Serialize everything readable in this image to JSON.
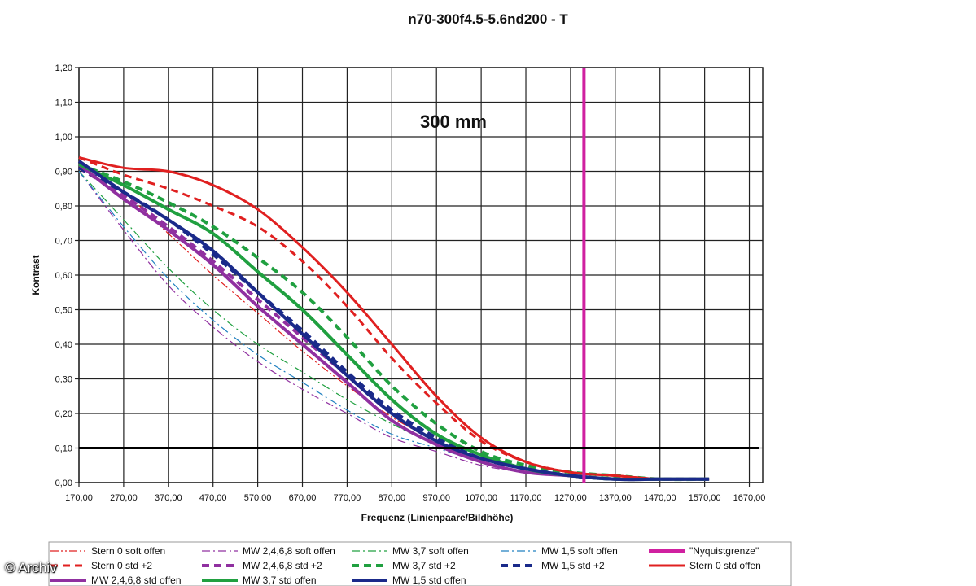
{
  "chart_data": {
    "type": "line",
    "title": "n70-300f4.5-5.6nd200 - T",
    "annotation": "300 mm",
    "xlabel": "Frequenz (Linienpaare/Bildhöhe)",
    "ylabel": "Kontrast",
    "xlim": [
      170,
      1700
    ],
    "ylim": [
      0,
      1.2
    ],
    "x_ticks": [
      "170,00",
      "270,00",
      "370,00",
      "470,00",
      "570,00",
      "670,00",
      "770,00",
      "870,00",
      "970,00",
      "1070,00",
      "1170,00",
      "1270,00",
      "1370,00",
      "1470,00",
      "1570,00",
      "1670,00"
    ],
    "y_ticks": [
      "0,00",
      "0,10",
      "0,20",
      "0,30",
      "0,40",
      "0,50",
      "0,60",
      "0,70",
      "0,80",
      "0,90",
      "1,00",
      "1,10",
      "1,20"
    ],
    "grid": true,
    "legend_position": "bottom",
    "reference_lines": [
      {
        "orientation": "vertical",
        "x": 1300,
        "color": "#d020a0"
      },
      {
        "orientation": "horizontal",
        "y": 0.1,
        "color": "#000000"
      }
    ],
    "series": [
      {
        "name": "Stern 0 soft offen",
        "color": "#e02020",
        "style": "dashdotdot",
        "width": 1.2,
        "points": [
          [
            170,
            0.93
          ],
          [
            270,
            0.84
          ],
          [
            370,
            0.72
          ],
          [
            470,
            0.6
          ],
          [
            570,
            0.49
          ],
          [
            670,
            0.38
          ],
          [
            770,
            0.28
          ],
          [
            870,
            0.19
          ],
          [
            970,
            0.12
          ],
          [
            1070,
            0.07
          ],
          [
            1170,
            0.04
          ],
          [
            1270,
            0.02
          ],
          [
            1370,
            0.01
          ],
          [
            1470,
            0.01
          ],
          [
            1580,
            0.01
          ]
        ]
      },
      {
        "name": "MW 2,4,6,8 soft offen",
        "color": "#9030a0",
        "style": "dashdot",
        "width": 1.2,
        "points": [
          [
            170,
            0.9
          ],
          [
            270,
            0.73
          ],
          [
            370,
            0.57
          ],
          [
            470,
            0.45
          ],
          [
            570,
            0.35
          ],
          [
            670,
            0.27
          ],
          [
            770,
            0.2
          ],
          [
            870,
            0.13
          ],
          [
            970,
            0.09
          ],
          [
            1070,
            0.05
          ],
          [
            1170,
            0.03
          ],
          [
            1270,
            0.02
          ],
          [
            1370,
            0.01
          ],
          [
            1470,
            0.01
          ],
          [
            1580,
            0.01
          ]
        ]
      },
      {
        "name": "MW 3,7 soft offen",
        "color": "#20a040",
        "style": "dashdot",
        "width": 1.2,
        "points": [
          [
            170,
            0.9
          ],
          [
            270,
            0.76
          ],
          [
            370,
            0.62
          ],
          [
            470,
            0.5
          ],
          [
            570,
            0.4
          ],
          [
            670,
            0.32
          ],
          [
            770,
            0.24
          ],
          [
            870,
            0.17
          ],
          [
            970,
            0.11
          ],
          [
            1070,
            0.07
          ],
          [
            1170,
            0.04
          ],
          [
            1270,
            0.02
          ],
          [
            1370,
            0.01
          ],
          [
            1470,
            0.01
          ],
          [
            1580,
            0.01
          ]
        ]
      },
      {
        "name": "MW 1,5 soft offen",
        "color": "#2080c0",
        "style": "dashdot",
        "width": 1.2,
        "points": [
          [
            170,
            0.9
          ],
          [
            270,
            0.74
          ],
          [
            370,
            0.59
          ],
          [
            470,
            0.47
          ],
          [
            570,
            0.37
          ],
          [
            670,
            0.29
          ],
          [
            770,
            0.21
          ],
          [
            870,
            0.14
          ],
          [
            970,
            0.1
          ],
          [
            1070,
            0.06
          ],
          [
            1170,
            0.03
          ],
          [
            1270,
            0.02
          ],
          [
            1370,
            0.01
          ],
          [
            1470,
            0.01
          ],
          [
            1580,
            0.01
          ]
        ]
      },
      {
        "name": "\"Nyquistgrenze\"",
        "color": "#d020a0",
        "style": "solid",
        "width": 4,
        "points": []
      },
      {
        "name": "Stern 0 std +2",
        "color": "#e02020",
        "style": "dash",
        "width": 3,
        "points": [
          [
            170,
            0.94
          ],
          [
            270,
            0.89
          ],
          [
            370,
            0.85
          ],
          [
            470,
            0.8
          ],
          [
            570,
            0.74
          ],
          [
            670,
            0.64
          ],
          [
            770,
            0.51
          ],
          [
            870,
            0.36
          ],
          [
            970,
            0.23
          ],
          [
            1070,
            0.12
          ],
          [
            1170,
            0.06
          ],
          [
            1270,
            0.03
          ],
          [
            1370,
            0.02
          ],
          [
            1470,
            0.01
          ],
          [
            1580,
            0.01
          ]
        ]
      },
      {
        "name": "MW 2,4,6,8 std +2",
        "color": "#9030a0",
        "style": "dash",
        "width": 4,
        "points": [
          [
            170,
            0.91
          ],
          [
            270,
            0.83
          ],
          [
            370,
            0.74
          ],
          [
            470,
            0.64
          ],
          [
            570,
            0.53
          ],
          [
            670,
            0.42
          ],
          [
            770,
            0.31
          ],
          [
            870,
            0.2
          ],
          [
            970,
            0.12
          ],
          [
            1070,
            0.07
          ],
          [
            1170,
            0.04
          ],
          [
            1270,
            0.02
          ],
          [
            1370,
            0.01
          ],
          [
            1470,
            0.01
          ],
          [
            1580,
            0.01
          ]
        ]
      },
      {
        "name": "MW 3,7 std +2",
        "color": "#20a040",
        "style": "dash",
        "width": 4,
        "points": [
          [
            170,
            0.92
          ],
          [
            270,
            0.87
          ],
          [
            370,
            0.81
          ],
          [
            470,
            0.74
          ],
          [
            570,
            0.65
          ],
          [
            670,
            0.55
          ],
          [
            770,
            0.42
          ],
          [
            870,
            0.28
          ],
          [
            970,
            0.17
          ],
          [
            1070,
            0.09
          ],
          [
            1170,
            0.05
          ],
          [
            1270,
            0.03
          ],
          [
            1370,
            0.02
          ],
          [
            1470,
            0.01
          ],
          [
            1580,
            0.01
          ]
        ]
      },
      {
        "name": "MW 1,5 std +2",
        "color": "#1a2a8a",
        "style": "dash",
        "width": 4,
        "points": [
          [
            170,
            0.91
          ],
          [
            270,
            0.84
          ],
          [
            370,
            0.76
          ],
          [
            470,
            0.66
          ],
          [
            570,
            0.55
          ],
          [
            670,
            0.44
          ],
          [
            770,
            0.32
          ],
          [
            870,
            0.21
          ],
          [
            970,
            0.13
          ],
          [
            1070,
            0.07
          ],
          [
            1170,
            0.04
          ],
          [
            1270,
            0.02
          ],
          [
            1370,
            0.01
          ],
          [
            1470,
            0.01
          ],
          [
            1580,
            0.01
          ]
        ]
      },
      {
        "name": "Stern 0 std offen",
        "color": "#e02020",
        "style": "solid",
        "width": 3,
        "points": [
          [
            170,
            0.94
          ],
          [
            270,
            0.91
          ],
          [
            370,
            0.9
          ],
          [
            470,
            0.86
          ],
          [
            570,
            0.79
          ],
          [
            670,
            0.68
          ],
          [
            770,
            0.55
          ],
          [
            870,
            0.4
          ],
          [
            970,
            0.25
          ],
          [
            1070,
            0.13
          ],
          [
            1170,
            0.06
          ],
          [
            1270,
            0.03
          ],
          [
            1370,
            0.02
          ],
          [
            1470,
            0.01
          ],
          [
            1580,
            0.01
          ]
        ]
      },
      {
        "name": "MW 2,4,6,8 std offen",
        "color": "#9030a0",
        "style": "solid",
        "width": 4,
        "points": [
          [
            170,
            0.92
          ],
          [
            270,
            0.82
          ],
          [
            370,
            0.73
          ],
          [
            470,
            0.63
          ],
          [
            570,
            0.51
          ],
          [
            670,
            0.4
          ],
          [
            770,
            0.29
          ],
          [
            870,
            0.18
          ],
          [
            970,
            0.11
          ],
          [
            1070,
            0.06
          ],
          [
            1170,
            0.03
          ],
          [
            1270,
            0.02
          ],
          [
            1370,
            0.01
          ],
          [
            1470,
            0.01
          ],
          [
            1580,
            0.01
          ]
        ]
      },
      {
        "name": "MW 3,7 std offen",
        "color": "#20a040",
        "style": "solid",
        "width": 4,
        "points": [
          [
            170,
            0.92
          ],
          [
            270,
            0.86
          ],
          [
            370,
            0.79
          ],
          [
            470,
            0.72
          ],
          [
            570,
            0.61
          ],
          [
            670,
            0.5
          ],
          [
            770,
            0.37
          ],
          [
            870,
            0.24
          ],
          [
            970,
            0.14
          ],
          [
            1070,
            0.08
          ],
          [
            1170,
            0.04
          ],
          [
            1270,
            0.02
          ],
          [
            1370,
            0.01
          ],
          [
            1470,
            0.01
          ],
          [
            1580,
            0.01
          ]
        ]
      },
      {
        "name": "MW 1,5 std offen",
        "color": "#1a2a8a",
        "style": "solid",
        "width": 4,
        "points": [
          [
            170,
            0.93
          ],
          [
            270,
            0.84
          ],
          [
            370,
            0.76
          ],
          [
            470,
            0.67
          ],
          [
            570,
            0.55
          ],
          [
            670,
            0.43
          ],
          [
            770,
            0.31
          ],
          [
            870,
            0.2
          ],
          [
            970,
            0.12
          ],
          [
            1070,
            0.07
          ],
          [
            1170,
            0.04
          ],
          [
            1270,
            0.02
          ],
          [
            1370,
            0.01
          ],
          [
            1470,
            0.01
          ],
          [
            1580,
            0.01
          ]
        ]
      }
    ]
  },
  "watermark": "© Archiv"
}
